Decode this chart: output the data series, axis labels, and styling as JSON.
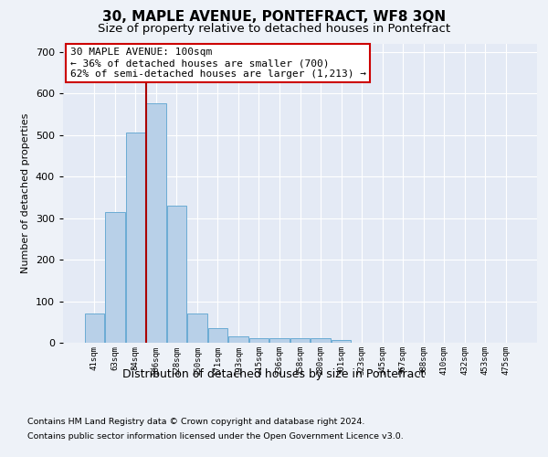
{
  "title": "30, MAPLE AVENUE, PONTEFRACT, WF8 3QN",
  "subtitle": "Size of property relative to detached houses in Pontefract",
  "xlabel": "Distribution of detached houses by size in Pontefract",
  "ylabel": "Number of detached properties",
  "categories": [
    "41sqm",
    "63sqm",
    "84sqm",
    "106sqm",
    "128sqm",
    "150sqm",
    "171sqm",
    "193sqm",
    "215sqm",
    "236sqm",
    "258sqm",
    "280sqm",
    "301sqm",
    "323sqm",
    "345sqm",
    "367sqm",
    "388sqm",
    "410sqm",
    "432sqm",
    "453sqm",
    "475sqm"
  ],
  "values": [
    70,
    315,
    505,
    575,
    330,
    70,
    35,
    15,
    12,
    10,
    10,
    10,
    7,
    0,
    0,
    0,
    0,
    0,
    0,
    0,
    0
  ],
  "bar_color": "#b8d0e8",
  "bar_edge_color": "#6aabd4",
  "vline_color": "#aa0000",
  "annotation_text": "30 MAPLE AVENUE: 100sqm\n← 36% of detached houses are smaller (700)\n62% of semi-detached houses are larger (1,213) →",
  "annotation_box_color": "#ffffff",
  "annotation_box_edge": "#cc0000",
  "ylim": [
    0,
    720
  ],
  "yticks": [
    0,
    100,
    200,
    300,
    400,
    500,
    600,
    700
  ],
  "footer_line1": "Contains HM Land Registry data © Crown copyright and database right 2024.",
  "footer_line2": "Contains public sector information licensed under the Open Government Licence v3.0.",
  "bg_color": "#eef2f8",
  "plot_bg_color": "#e4eaf5",
  "grid_color": "#ffffff",
  "title_fontsize": 11,
  "subtitle_fontsize": 9.5
}
